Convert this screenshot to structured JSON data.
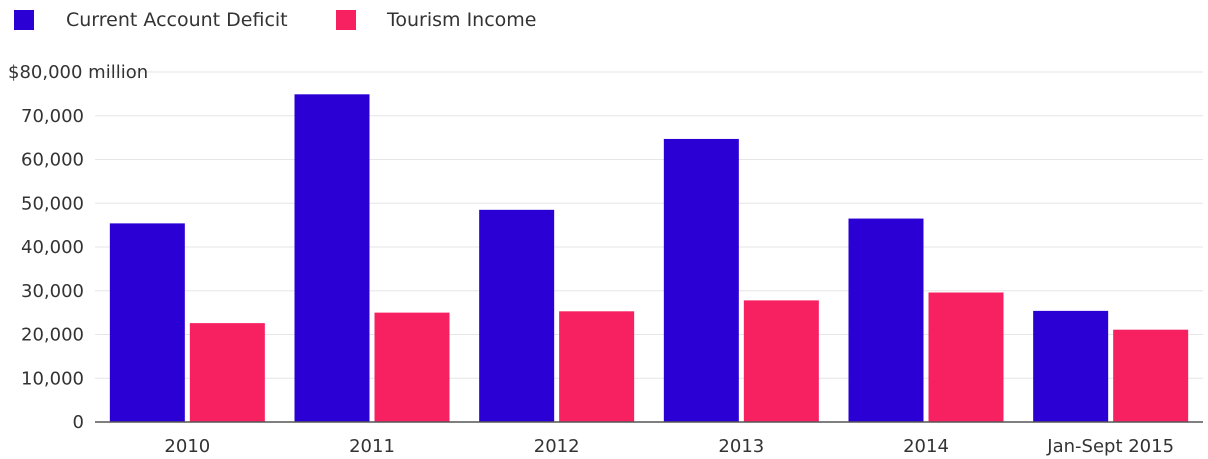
{
  "chart_data": {
    "type": "bar",
    "categories": [
      "2010",
      "2011",
      "2012",
      "2013",
      "2014",
      "Jan-Sept 2015"
    ],
    "series": [
      {
        "name": "Current Account Deficit",
        "color": "#2b00d4",
        "values": [
          45400,
          74900,
          48500,
          64700,
          46500,
          25400
        ]
      },
      {
        "name": "Tourism Income",
        "color": "#f72060",
        "values": [
          22600,
          25000,
          25300,
          27800,
          29600,
          21100
        ]
      }
    ],
    "title": "",
    "xlabel": "",
    "ylabel": "",
    "ylim": [
      0,
      80000
    ],
    "yticks": [
      {
        "value": 0,
        "label": "0"
      },
      {
        "value": 10000,
        "label": "10,000"
      },
      {
        "value": 20000,
        "label": "20,000"
      },
      {
        "value": 30000,
        "label": "30,000"
      },
      {
        "value": 40000,
        "label": "40,000"
      },
      {
        "value": 50000,
        "label": "50,000"
      },
      {
        "value": 60000,
        "label": "60,000"
      },
      {
        "value": 70000,
        "label": "70,000"
      },
      {
        "value": 80000,
        "label": "$80,000 million"
      }
    ],
    "grid": true,
    "legend": "top-left"
  }
}
